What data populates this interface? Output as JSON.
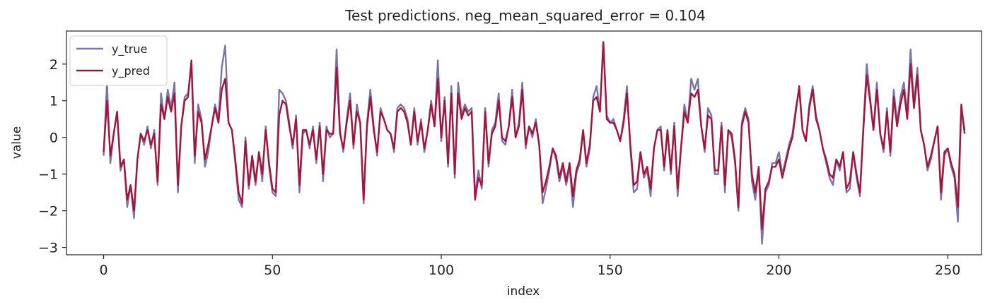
{
  "chart_data": {
    "type": "line",
    "title": "Test predictions. neg_mean_squared_error = 0.104",
    "xlabel": "index",
    "ylabel": "value",
    "xlim": [
      -11,
      260
    ],
    "ylim": [
      -3.2,
      2.9
    ],
    "xticks": [
      0,
      50,
      100,
      150,
      200,
      250
    ],
    "yticks": [
      -3,
      -2,
      -1,
      0,
      1,
      2
    ],
    "grid": false,
    "legend": {
      "placement": "top-left"
    },
    "series": [
      {
        "name": "y_true",
        "color": "#7b74a8",
        "x": [
          0,
          1,
          2,
          3,
          4,
          5,
          6,
          7,
          8,
          9,
          10,
          11,
          12,
          13,
          14,
          15,
          16,
          17,
          18,
          19,
          20,
          21,
          22,
          23,
          24,
          25,
          26,
          27,
          28,
          29,
          30,
          31,
          32,
          33,
          34,
          35,
          36,
          37,
          38,
          39,
          40,
          41,
          42,
          43,
          44,
          45,
          46,
          47,
          48,
          49,
          50,
          51,
          52,
          53,
          54,
          55,
          56,
          57,
          58,
          59,
          60,
          61,
          62,
          63,
          64,
          65,
          66,
          67,
          68,
          69,
          70,
          71,
          72,
          73,
          74,
          75,
          76,
          77,
          78,
          79,
          80,
          81,
          82,
          83,
          84,
          85,
          86,
          87,
          88,
          89,
          90,
          91,
          92,
          93,
          94,
          95,
          96,
          97,
          98,
          99,
          100,
          101,
          102,
          103,
          104,
          105,
          106,
          107,
          108,
          109,
          110,
          111,
          112,
          113,
          114,
          115,
          116,
          117,
          118,
          119,
          120,
          121,
          122,
          123,
          124,
          125,
          126,
          127,
          128,
          129,
          130,
          131,
          132,
          133,
          134,
          135,
          136,
          137,
          138,
          139,
          140,
          141,
          142,
          143,
          144,
          145,
          146,
          147,
          148,
          149,
          150,
          151,
          152,
          153,
          154,
          155,
          156,
          157,
          158,
          159,
          160,
          161,
          162,
          163,
          164,
          165,
          166,
          167,
          168,
          169,
          170,
          171,
          172,
          173,
          174,
          175,
          176,
          177,
          178,
          179,
          180,
          181,
          182,
          183,
          184,
          185,
          186,
          187,
          188,
          189,
          190,
          191,
          192,
          193,
          194,
          195,
          196,
          197,
          198,
          199,
          200,
          201,
          202,
          203,
          204,
          205,
          206,
          207,
          208,
          209,
          210,
          211,
          212,
          213,
          214,
          215,
          216,
          217,
          218,
          219,
          220,
          221,
          222,
          223,
          224,
          225,
          226,
          227,
          228,
          229,
          230,
          231,
          232,
          233,
          234,
          235,
          236,
          237,
          238,
          239,
          240,
          241,
          242,
          243,
          244,
          245,
          246,
          247,
          248,
          249,
          250,
          251,
          252,
          253,
          254,
          255
        ],
        "values": [
          -0.5,
          1.5,
          -0.7,
          0.1,
          0.7,
          -0.9,
          -0.6,
          -1.9,
          -1.3,
          -2.2,
          -0.6,
          0.1,
          -0.2,
          0.3,
          -0.3,
          0.2,
          -1.3,
          1.2,
          0.5,
          1.3,
          0.8,
          1.5,
          -1.5,
          0.3,
          1.1,
          1.2,
          2.0,
          -0.7,
          0.9,
          0.5,
          -0.8,
          -0.4,
          0.3,
          0.9,
          0.5,
          1.9,
          2.5,
          0.4,
          0.2,
          -0.7,
          -1.7,
          -1.9,
          0.0,
          -1.4,
          -0.6,
          -1.3,
          -0.4,
          -1.2,
          0.3,
          -0.8,
          -1.5,
          -1.6,
          1.3,
          1.2,
          1.0,
          0.4,
          -0.3,
          0.6,
          -1.5,
          0.1,
          0.2,
          -0.3,
          0.3,
          -0.7,
          0.4,
          -1.2,
          0.3,
          0.0,
          0.1,
          2.4,
          0.2,
          -0.4,
          0.5,
          1.2,
          -0.3,
          0.9,
          0.4,
          -1.8,
          0.4,
          1.3,
          0.3,
          -0.5,
          0.8,
          0.5,
          0.2,
          0.1,
          -0.4,
          0.8,
          0.9,
          0.8,
          0.5,
          -0.2,
          0.8,
          -0.2,
          0.5,
          -0.4,
          0.2,
          1.0,
          0.3,
          2.1,
          -0.1,
          1.1,
          -0.8,
          1.4,
          -1.1,
          1.5,
          0.6,
          0.9,
          0.7,
          0.8,
          -1.6,
          -0.9,
          -1.4,
          0.8,
          -0.8,
          0.2,
          0.4,
          1.2,
          -0.1,
          -0.2,
          0.3,
          1.3,
          0.0,
          0.4,
          1.5,
          -0.3,
          0.3,
          0.0,
          0.5,
          -0.2,
          -1.8,
          -1.4,
          -0.9,
          -0.3,
          -0.6,
          -1.2,
          -0.8,
          -1.3,
          -0.8,
          -1.9,
          -1.0,
          -0.7,
          0.2,
          -0.8,
          -0.3,
          1.1,
          1.4,
          0.7,
          2.6,
          0.6,
          0.4,
          0.5,
          0.2,
          -0.1,
          0.5,
          1.4,
          -0.3,
          -1.5,
          -1.4,
          -0.4,
          -1.1,
          -0.9,
          -1.6,
          -0.3,
          0.2,
          0.3,
          -0.9,
          0.2,
          -1.0,
          0.4,
          -1.6,
          -0.3,
          0.9,
          0.4,
          1.6,
          1.3,
          1.6,
          0.3,
          -0.4,
          0.8,
          0.6,
          -1.0,
          -1.0,
          0.4,
          -1.5,
          0.2,
          0.0,
          -0.7,
          -2.0,
          0.4,
          0.8,
          0.5,
          -1.2,
          -1.7,
          -0.9,
          -2.9,
          -1.5,
          -1.3,
          -0.7,
          -0.7,
          -0.4,
          -1.0,
          -0.6,
          -0.2,
          0.1,
          0.8,
          1.3,
          0.2,
          -0.1,
          0.9,
          1.4,
          0.6,
          0.2,
          -0.3,
          -0.7,
          -1.1,
          -1.3,
          -0.6,
          -0.9,
          -0.4,
          -1.5,
          -1.4,
          -0.4,
          -1.1,
          -1.6,
          0.3,
          2.0,
          1.1,
          0.2,
          1.5,
          0.1,
          -0.4,
          0.8,
          -0.5,
          1.3,
          0.4,
          1.1,
          1.5,
          0.6,
          2.4,
          0.9,
          1.9,
          0.2,
          -0.2,
          -0.9,
          -0.6,
          -0.1,
          0.3,
          -1.7,
          -0.5,
          -0.3,
          -0.8,
          -1.1,
          -2.3,
          0.8,
          0.2
        ]
      },
      {
        "name": "y_pred",
        "color": "#a0163c",
        "x": [
          0,
          1,
          2,
          3,
          4,
          5,
          6,
          7,
          8,
          9,
          10,
          11,
          12,
          13,
          14,
          15,
          16,
          17,
          18,
          19,
          20,
          21,
          22,
          23,
          24,
          25,
          26,
          27,
          28,
          29,
          30,
          31,
          32,
          33,
          34,
          35,
          36,
          37,
          38,
          39,
          40,
          41,
          42,
          43,
          44,
          45,
          46,
          47,
          48,
          49,
          50,
          51,
          52,
          53,
          54,
          55,
          56,
          57,
          58,
          59,
          60,
          61,
          62,
          63,
          64,
          65,
          66,
          67,
          68,
          69,
          70,
          71,
          72,
          73,
          74,
          75,
          76,
          77,
          78,
          79,
          80,
          81,
          82,
          83,
          84,
          85,
          86,
          87,
          88,
          89,
          90,
          91,
          92,
          93,
          94,
          95,
          96,
          97,
          98,
          99,
          100,
          101,
          102,
          103,
          104,
          105,
          106,
          107,
          108,
          109,
          110,
          111,
          112,
          113,
          114,
          115,
          116,
          117,
          118,
          119,
          120,
          121,
          122,
          123,
          124,
          125,
          126,
          127,
          128,
          129,
          130,
          131,
          132,
          133,
          134,
          135,
          136,
          137,
          138,
          139,
          140,
          141,
          142,
          143,
          144,
          145,
          146,
          147,
          148,
          149,
          150,
          151,
          152,
          153,
          154,
          155,
          156,
          157,
          158,
          159,
          160,
          161,
          162,
          163,
          164,
          165,
          166,
          167,
          168,
          169,
          170,
          171,
          172,
          173,
          174,
          175,
          176,
          177,
          178,
          179,
          180,
          181,
          182,
          183,
          184,
          185,
          186,
          187,
          188,
          189,
          190,
          191,
          192,
          193,
          194,
          195,
          196,
          197,
          198,
          199,
          200,
          201,
          202,
          203,
          204,
          205,
          206,
          207,
          208,
          209,
          210,
          211,
          212,
          213,
          214,
          215,
          216,
          217,
          218,
          219,
          220,
          221,
          222,
          223,
          224,
          225,
          226,
          227,
          228,
          229,
          230,
          231,
          232,
          233,
          234,
          235,
          236,
          237,
          238,
          239,
          240,
          241,
          242,
          243,
          244,
          245,
          246,
          247,
          248,
          249,
          250,
          251,
          252,
          253,
          254,
          255
        ],
        "values": [
          -0.4,
          1.0,
          -0.5,
          0.1,
          0.7,
          -0.8,
          -0.6,
          -1.7,
          -1.3,
          -2.0,
          -0.6,
          0.1,
          -0.1,
          0.2,
          -0.2,
          0.1,
          -1.2,
          0.9,
          0.5,
          1.1,
          0.7,
          1.2,
          -1.3,
          0.3,
          1.0,
          1.1,
          2.1,
          -0.5,
          0.7,
          0.4,
          -0.6,
          -0.2,
          0.3,
          0.8,
          0.4,
          1.3,
          1.6,
          0.4,
          0.2,
          -0.6,
          -1.5,
          -1.8,
          -0.1,
          -1.3,
          -0.5,
          -1.2,
          -0.4,
          -1.0,
          0.2,
          -0.7,
          -1.4,
          -1.5,
          0.6,
          1.0,
          0.9,
          0.3,
          -0.2,
          0.5,
          -1.3,
          0.2,
          0.2,
          -0.2,
          0.2,
          -0.6,
          0.3,
          -1.0,
          0.2,
          0.1,
          0.1,
          1.9,
          0.1,
          -0.3,
          0.4,
          1.0,
          -0.2,
          0.7,
          0.4,
          -1.7,
          0.3,
          1.1,
          0.2,
          -0.4,
          0.7,
          0.5,
          0.2,
          0.1,
          -0.3,
          0.7,
          0.8,
          0.7,
          0.4,
          -0.2,
          0.7,
          -0.1,
          0.4,
          -0.3,
          0.2,
          0.9,
          0.3,
          1.6,
          0.0,
          1.0,
          -0.7,
          1.2,
          -1.0,
          1.2,
          0.5,
          0.8,
          0.6,
          0.7,
          -1.7,
          -1.1,
          -1.3,
          0.7,
          -0.7,
          0.1,
          0.3,
          1.0,
          0.0,
          -0.1,
          0.3,
          1.1,
          0.0,
          0.3,
          1.3,
          -0.2,
          0.3,
          0.1,
          0.4,
          -0.2,
          -1.5,
          -1.2,
          -0.8,
          -0.3,
          -0.5,
          -1.1,
          -0.7,
          -1.2,
          -0.7,
          -1.6,
          -0.9,
          -0.6,
          0.2,
          -0.7,
          -0.2,
          1.0,
          1.1,
          0.7,
          2.6,
          0.5,
          0.4,
          0.4,
          0.2,
          -0.1,
          0.4,
          1.2,
          -0.2,
          -1.3,
          -1.2,
          -0.4,
          -1.0,
          -0.8,
          -1.4,
          -0.3,
          0.2,
          0.2,
          -0.8,
          0.2,
          -0.9,
          0.3,
          -1.4,
          -0.3,
          0.7,
          0.4,
          1.2,
          1.1,
          1.3,
          0.3,
          -0.3,
          0.6,
          0.5,
          -0.9,
          -0.9,
          0.3,
          -1.3,
          0.2,
          0.1,
          -0.6,
          -1.9,
          0.3,
          0.7,
          0.4,
          -1.0,
          -1.5,
          -0.8,
          -2.5,
          -1.4,
          -1.2,
          -0.8,
          -0.8,
          -0.6,
          -1.1,
          -0.7,
          -0.3,
          0.0,
          0.7,
          1.4,
          0.2,
          -0.1,
          0.8,
          1.3,
          0.5,
          0.2,
          -0.3,
          -0.6,
          -1.0,
          -1.1,
          -0.6,
          -0.8,
          -0.4,
          -1.4,
          -1.2,
          -0.4,
          -1.0,
          -1.5,
          0.2,
          1.7,
          1.0,
          0.2,
          1.3,
          0.1,
          -0.3,
          0.7,
          -0.4,
          1.1,
          0.3,
          0.9,
          1.3,
          0.5,
          2.0,
          0.8,
          1.7,
          0.2,
          -0.2,
          -0.8,
          -0.5,
          -0.1,
          0.3,
          -1.5,
          -0.4,
          -0.3,
          -0.7,
          -1.0,
          -1.9,
          0.9,
          0.1
        ]
      }
    ]
  }
}
